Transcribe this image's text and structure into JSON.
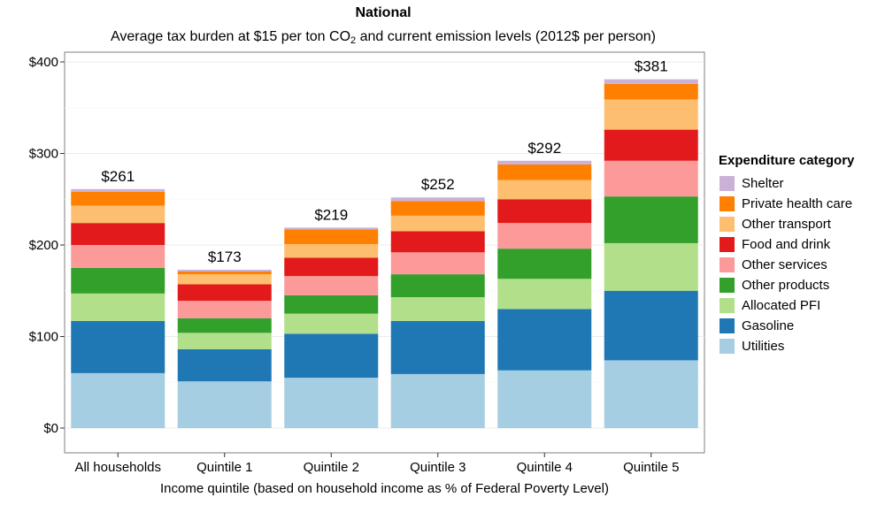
{
  "chart_data": {
    "type": "bar",
    "stacked": true,
    "title": "National",
    "subtitle_parts": [
      "Average tax burden at $15 per ton CO",
      "2",
      " and current emission levels (2012$ per person)"
    ],
    "xlabel": "Income quintile (based on household income as % of Federal Poverty Level)",
    "ylabel": "",
    "ylim": [
      0,
      405
    ],
    "yticks": [
      0,
      100,
      200,
      300,
      400
    ],
    "ytick_labels": [
      "$0",
      "$100",
      "$200",
      "$300",
      "$400"
    ],
    "grid": true,
    "legend_position": "right",
    "legend_title": "Expenditure category",
    "categories": [
      "All households",
      "Quintile 1",
      "Quintile 2",
      "Quintile 3",
      "Quintile 4",
      "Quintile 5"
    ],
    "totals": [
      261,
      173,
      219,
      252,
      292,
      381
    ],
    "total_labels": [
      "$261",
      "$173",
      "$219",
      "$252",
      "$292",
      "$381"
    ],
    "series": [
      {
        "name": "Utilities",
        "color": "#a6cee3",
        "values": [
          60,
          51,
          55,
          59,
          63,
          74
        ]
      },
      {
        "name": "Gasoline",
        "color": "#1f78b4",
        "values": [
          57,
          35,
          48,
          58,
          67,
          76
        ]
      },
      {
        "name": "Allocated PFI",
        "color": "#b2df8a",
        "values": [
          30,
          18,
          22,
          26,
          33,
          52
        ]
      },
      {
        "name": "Other products",
        "color": "#33a02c",
        "values": [
          28,
          16,
          20,
          25,
          33,
          51
        ]
      },
      {
        "name": "Other services",
        "color": "#fb9a99",
        "values": [
          25,
          19,
          21,
          24,
          28,
          39
        ]
      },
      {
        "name": "Food and drink",
        "color": "#e31a1c",
        "values": [
          24,
          18,
          20,
          23,
          26,
          34
        ]
      },
      {
        "name": "Other transport",
        "color": "#fdbf6f",
        "values": [
          19,
          11,
          15,
          17,
          21,
          33
        ]
      },
      {
        "name": "Private health care",
        "color": "#ff7f00",
        "values": [
          15,
          3,
          16,
          16,
          17,
          17
        ]
      },
      {
        "name": "Shelter",
        "color": "#cab2d6",
        "values": [
          3,
          2,
          2,
          4,
          4,
          5
        ]
      }
    ]
  }
}
